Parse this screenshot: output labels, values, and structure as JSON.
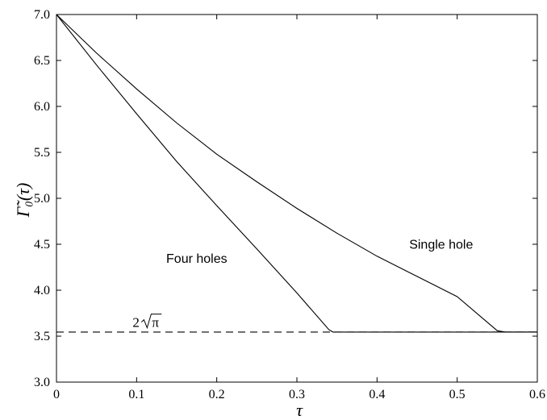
{
  "chart_data": {
    "type": "line",
    "xlabel": "τ",
    "ylabel": "Γ̃₀(τ)",
    "xlim": [
      0,
      0.6
    ],
    "ylim": [
      3.0,
      7.0
    ],
    "xticks": [
      0,
      0.1,
      0.2,
      0.3,
      0.4,
      0.5,
      0.6
    ],
    "yticks": [
      3.0,
      3.5,
      4.0,
      4.5,
      5.0,
      5.5,
      6.0,
      6.5,
      7.0
    ],
    "xtick_labels": [
      "0",
      "0.1",
      "0.2",
      "0.3",
      "0.4",
      "0.5",
      "0.6"
    ],
    "ytick_labels": [
      "3.0",
      "3.5",
      "4.0",
      "4.5",
      "5.0",
      "5.5",
      "6.0",
      "6.5",
      "7.0"
    ],
    "grid": false,
    "legend": "none",
    "series": [
      {
        "name": "Single hole",
        "style": "solid",
        "x": [
          0,
          0.05,
          0.1,
          0.15,
          0.2,
          0.25,
          0.3,
          0.35,
          0.4,
          0.45,
          0.5,
          0.55,
          0.56,
          0.6
        ],
        "y": [
          7.0,
          6.58,
          6.19,
          5.82,
          5.48,
          5.18,
          4.89,
          4.62,
          4.37,
          4.15,
          3.93,
          3.56,
          3.545,
          3.545
        ]
      },
      {
        "name": "Four holes",
        "style": "solid",
        "x": [
          0,
          0.05,
          0.1,
          0.15,
          0.2,
          0.25,
          0.3,
          0.34,
          0.345,
          0.6
        ],
        "y": [
          7.0,
          6.45,
          5.92,
          5.4,
          4.92,
          4.45,
          3.97,
          3.57,
          3.545,
          3.545
        ]
      },
      {
        "name": "2√π",
        "style": "dashed",
        "x": [
          0,
          0.6
        ],
        "y": [
          3.545,
          3.545
        ]
      }
    ],
    "annotations": {
      "single_hole": "Single hole",
      "four_holes": "Four holes",
      "two_sqrt_pi_coef": "2",
      "two_sqrt_pi_arg": "π"
    },
    "annotation_positions": {
      "single_hole": [
        0.48,
        4.45
      ],
      "four_holes": [
        0.175,
        4.3
      ],
      "two_sqrt_pi": [
        0.095,
        3.6
      ]
    }
  }
}
